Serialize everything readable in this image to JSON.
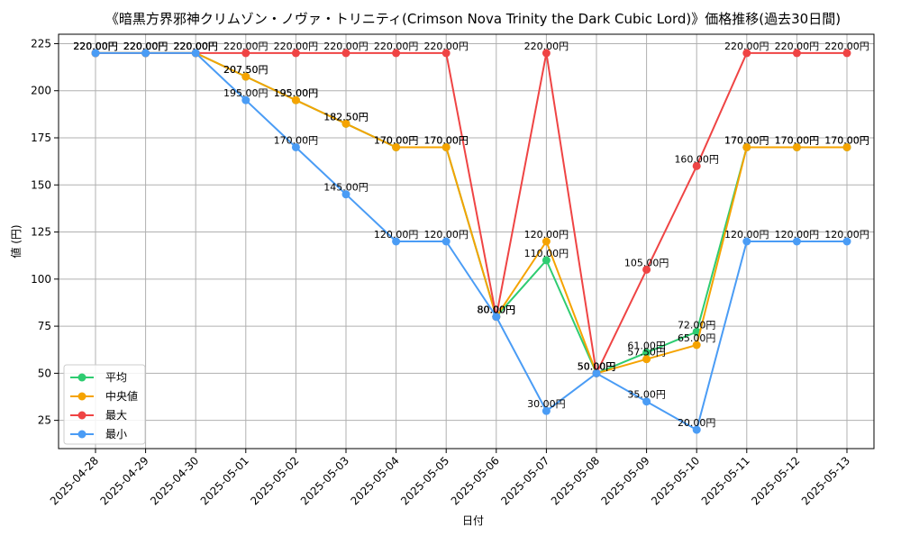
{
  "chart_data": {
    "type": "line",
    "title": "《暗黒方界邪神クリムゾン・ノヴァ・トリニティ(Crimson Nova Trinity the Dark Cubic Lord)》価格推移(過去30日間)",
    "xlabel": "日付",
    "ylabel": "値 (円)",
    "ylim": [
      10,
      230
    ],
    "yticks": [
      25,
      50,
      75,
      100,
      125,
      150,
      175,
      200,
      225
    ],
    "categories": [
      "2025-04-28",
      "2025-04-29",
      "2025-04-30",
      "2025-05-01",
      "2025-05-02",
      "2025-05-03",
      "2025-05-04",
      "2025-05-05",
      "2025-05-06",
      "2025-05-07",
      "2025-05-08",
      "2025-05-09",
      "2025-05-10",
      "2025-05-11",
      "2025-05-12",
      "2025-05-13"
    ],
    "value_suffix": "円",
    "grid": true,
    "legend_position": "lower-left",
    "series": [
      {
        "name": "平均",
        "color": "#2ecc71",
        "values": [
          220,
          220,
          220,
          207.5,
          195,
          182.5,
          170,
          170,
          80,
          110,
          50,
          61,
          72,
          170,
          170,
          170
        ]
      },
      {
        "name": "中央値",
        "color": "#f5a300",
        "values": [
          220,
          220,
          220,
          207.5,
          195,
          182.5,
          170,
          170,
          80,
          120,
          50,
          57.5,
          65,
          170,
          170,
          170
        ]
      },
      {
        "name": "最大",
        "color": "#ef4444",
        "values": [
          220,
          220,
          220,
          220,
          220,
          220,
          220,
          220,
          80,
          220,
          50,
          105,
          160,
          220,
          220,
          220
        ]
      },
      {
        "name": "最小",
        "color": "#4a9cf5",
        "values": [
          220,
          220,
          220,
          195,
          170,
          145,
          120,
          120,
          80,
          30,
          50,
          35,
          20,
          120,
          120,
          120
        ]
      }
    ]
  }
}
